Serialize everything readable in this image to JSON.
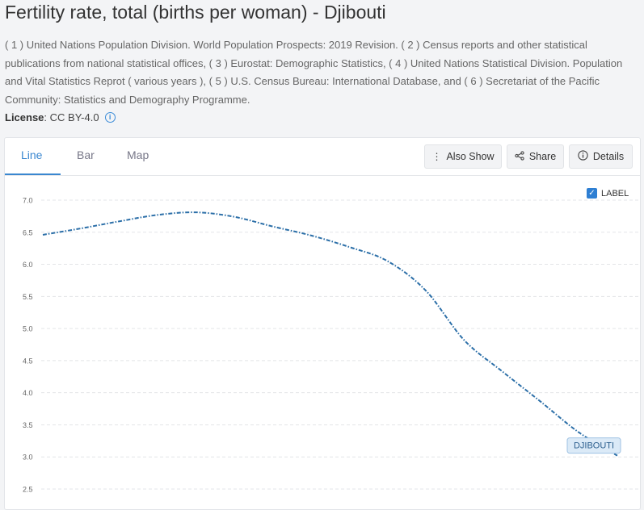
{
  "header": {
    "title": "Fertility rate, total (births per woman) - Djibouti",
    "sources": "( 1 ) United Nations Population Division. World Population Prospects: 2019 Revision. ( 2 ) Census reports and other statistical publications from national statistical offices, ( 3 ) Eurostat: Demographic Statistics, ( 4 ) United Nations Statistical Division. Population and Vital Statistics Reprot ( various years ), ( 5 ) U.S. Census Bureau: International Database, and ( 6 ) Secretariat of the Pacific Community: Statistics and Demography Programme.",
    "license_label": "License",
    "license_value": " : CC BY-4.0"
  },
  "tabs": [
    {
      "label": "Line"
    },
    {
      "label": "Bar"
    },
    {
      "label": "Map"
    }
  ],
  "toolbar": {
    "also_show": "Also Show",
    "share": "Share",
    "details": "Details"
  },
  "label_toggle": "LABEL",
  "colors": {
    "accent": "#3a87d0",
    "series": "#2c6fa8"
  },
  "chart_data": {
    "type": "line",
    "title": "",
    "xlabel": "",
    "ylabel": "",
    "ylim": [
      2.5,
      7.0
    ],
    "yticks": [
      "2.5",
      "3.0",
      "3.5",
      "4.0",
      "4.5",
      "5.0",
      "5.5",
      "6.0",
      "6.5",
      "7.0"
    ],
    "grid": true,
    "x": [
      0,
      4,
      8,
      12,
      16,
      20,
      24,
      28,
      32,
      36,
      40,
      44,
      48,
      52,
      56,
      60
    ],
    "series": [
      {
        "name": "DJIBOUTI",
        "values": [
          6.46,
          6.56,
          6.67,
          6.77,
          6.81,
          6.74,
          6.59,
          6.45,
          6.27,
          6.05,
          5.59,
          4.82,
          4.33,
          3.86,
          3.38,
          3.02
        ]
      }
    ],
    "end_label": "DJIBOUTI"
  }
}
